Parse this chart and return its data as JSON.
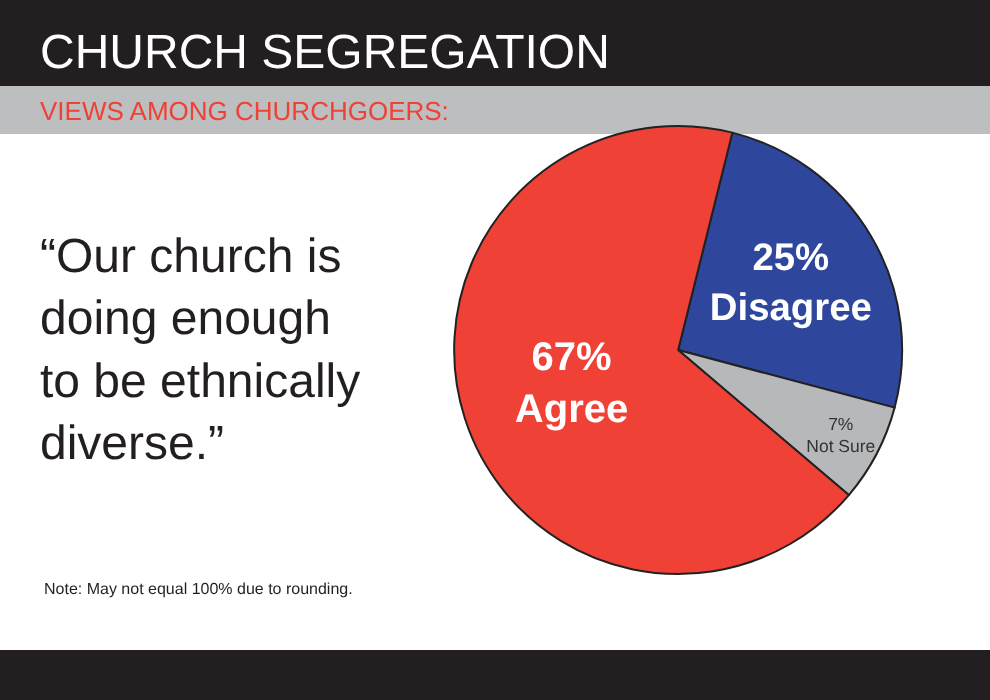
{
  "chart_data": {
    "type": "pie",
    "title": "CHURCH SEGREGATION",
    "subtitle": "VIEWS AMONG CHURCHGOERS:",
    "categories": [
      "Disagree",
      "Not Sure",
      "Agree"
    ],
    "values": [
      25,
      7,
      67
    ],
    "value_labels": [
      "25%",
      "7%",
      "67%"
    ],
    "colors": [
      "#2e479c",
      "#b7b8ba",
      "#ef4136"
    ],
    "legend": false,
    "annotations": [
      "“Our church is\ndoing enough\nto be ethnically\ndiverse.”",
      "Note: May not equal 100% due to rounding."
    ]
  }
}
